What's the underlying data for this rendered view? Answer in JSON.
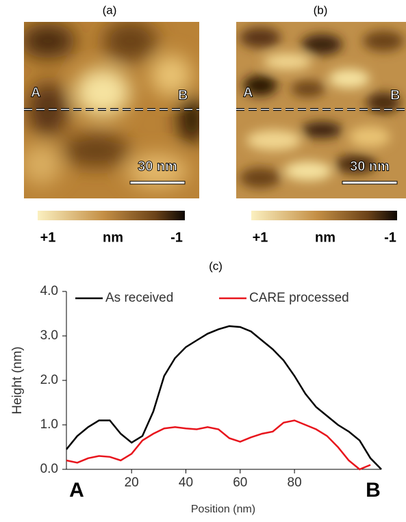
{
  "panels": [
    {
      "label": "(a)",
      "point_a": "A",
      "point_b": "B",
      "scale_bar": "30 nm",
      "colorbar": {
        "max": "+1",
        "unit": "nm",
        "min": "-1"
      }
    },
    {
      "label": "(b)",
      "point_a": "A",
      "point_b": "B",
      "scale_bar": "30 nm",
      "colorbar": {
        "max": "+1",
        "unit": "nm",
        "min": "-1"
      }
    }
  ],
  "chart_data": {
    "type": "line",
    "title": "(c)",
    "xlabel": "Position (nm)",
    "ylabel": "Height (nm)",
    "start_label": "A",
    "end_label": "B",
    "x": [
      -4,
      0,
      4,
      8,
      12,
      16,
      20,
      24,
      28,
      32,
      36,
      40,
      44,
      48,
      52,
      56,
      60,
      64,
      68,
      72,
      76,
      80,
      84,
      88,
      92,
      96,
      100,
      104,
      108,
      112
    ],
    "series": [
      {
        "name": "As received",
        "color": "#000000",
        "values": [
          0.45,
          0.75,
          0.95,
          1.1,
          1.1,
          0.8,
          0.6,
          0.75,
          1.3,
          2.1,
          2.5,
          2.75,
          2.9,
          3.05,
          3.15,
          3.22,
          3.2,
          3.1,
          2.9,
          2.7,
          2.45,
          2.1,
          1.7,
          1.4,
          1.2,
          1.0,
          0.85,
          0.65,
          0.25,
          0.0
        ]
      },
      {
        "name": "CARE processed",
        "color": "#e8141c",
        "values": [
          0.2,
          0.15,
          0.25,
          0.3,
          0.28,
          0.2,
          0.35,
          0.65,
          0.8,
          0.92,
          0.95,
          0.92,
          0.9,
          0.95,
          0.9,
          0.7,
          0.62,
          0.72,
          0.8,
          0.85,
          1.05,
          1.1,
          1.0,
          0.9,
          0.75,
          0.5,
          0.2,
          0.0,
          0.1,
          null
        ]
      }
    ],
    "xlim": [
      -4,
      112
    ],
    "ylim": [
      0,
      4
    ],
    "xticks": [
      20,
      40,
      60,
      80
    ],
    "yticks": [
      {
        "value": 0,
        "label": "0.0"
      },
      {
        "value": 1,
        "label": "1.0"
      },
      {
        "value": 2,
        "label": "2.0"
      },
      {
        "value": 3,
        "label": "3.0"
      },
      {
        "value": 4,
        "label": "4.0"
      }
    ],
    "legend": "top"
  }
}
